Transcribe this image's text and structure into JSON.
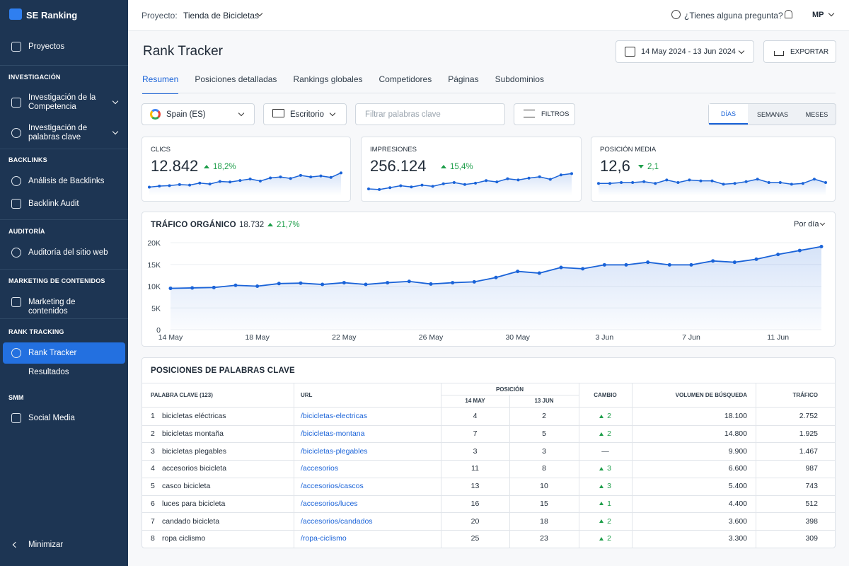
{
  "sidebar": {
    "brand": "SE Ranking",
    "top_item": "Proyectos",
    "sections": [
      {
        "title": "INVESTIGACIÓN",
        "items": [
          "Investigación de la Competencia",
          "Investigación de palabras clave"
        ]
      },
      {
        "title": "BACKLINKS",
        "items": [
          "Análisis de Backlinks",
          "Backlink Audit"
        ]
      },
      {
        "title": "AUDITORÍA",
        "items": [
          "Auditoría del sitio web"
        ]
      },
      {
        "title": "MARKETING DE CONTENIDOS",
        "items": [
          "Marketing de contenidos"
        ]
      },
      {
        "title": "RANK TRACKING",
        "items": [
          "Rank Tracker",
          "Resultados"
        ]
      },
      {
        "title": "SMM",
        "items": [
          "Social Media"
        ]
      }
    ],
    "minimize": "Minimizar"
  },
  "topbar": {
    "project_label": "Proyecto:",
    "project": "Tienda de Bicicletas",
    "help": "¿Tienes alguna pregunta?",
    "avatar": "MP"
  },
  "header": {
    "title": "Rank Tracker",
    "date_range": "14 May 2024 - 13 Jun 2024",
    "export": "EXPORTAR"
  },
  "tabs": [
    "Resumen",
    "Posiciones detalladas",
    "Rankings globales",
    "Competidores",
    "Páginas",
    "Subdominios"
  ],
  "filters": {
    "location": "Spain (ES)",
    "device": "Escritorio",
    "search_placeholder": "Filtrar palabras clave",
    "filters_button": "FILTROS",
    "periods": [
      "DÍAS",
      "SEMANAS",
      "MESES"
    ]
  },
  "kpis": [
    {
      "label": "CLICS",
      "value": "12.842",
      "change": "18,2%",
      "trend": "up",
      "sparkline": {
        "values": [
          330,
          340,
          345,
          355,
          350,
          370,
          360,
          385,
          380,
          395,
          410,
          390,
          420,
          430,
          415,
          445,
          430,
          440,
          425,
          470
        ],
        "ylim": [
          250,
          500
        ]
      }
    },
    {
      "label": "IMPRESIONES",
      "value": "256.124",
      "change": "15,4%",
      "trend": "up",
      "sparkline": {
        "values": [
          8000,
          7900,
          8200,
          8500,
          8300,
          8600,
          8400,
          8800,
          9000,
          8700,
          8900,
          9300,
          9100,
          9600,
          9400,
          9700,
          9900,
          9500,
          10200,
          10400
        ],
        "ylim": [
          7000,
          11000
        ]
      }
    },
    {
      "label": "POSICIÓN MEDIA",
      "value": "12,6",
      "change": "2,1",
      "trend": "down",
      "sparkline": {
        "values": [
          12.4,
          12.4,
          12.5,
          12.5,
          12.6,
          12.4,
          12.8,
          12.5,
          12.8,
          12.7,
          12.7,
          12.3,
          12.4,
          12.6,
          12.9,
          12.5,
          12.5,
          12.3,
          12.4,
          12.9,
          12.5
        ],
        "ylim": [
          11,
          14
        ]
      }
    }
  ],
  "traffic": {
    "title": "TRÁFICO ORGÁNICO",
    "total": "18.732",
    "change": "21,7%",
    "period": "Por día",
    "chart_data": {
      "type": "line",
      "color": "#1a63d8",
      "categories": [
        "14 May",
        null,
        null,
        null,
        "18 May",
        null,
        null,
        null,
        "22 May",
        null,
        null,
        null,
        "26 May",
        null,
        null,
        null,
        "30 May",
        null,
        null,
        null,
        "3 Jun",
        null,
        null,
        null,
        "7 Jun",
        null,
        null,
        null,
        "11 Jun",
        null,
        null
      ],
      "values": [
        9500,
        9600,
        9700,
        10200,
        10000,
        10600,
        10700,
        10400,
        10800,
        10400,
        10800,
        11100,
        10500,
        10800,
        11000,
        12000,
        13400,
        13000,
        14300,
        14000,
        14900,
        14900,
        15500,
        14900,
        14900,
        15800,
        15500,
        16200,
        17300,
        18200,
        19100
      ],
      "ylim": [
        0,
        20000
      ],
      "yticks": [
        0,
        {
          "value": 5000,
          "label": "5K"
        },
        {
          "value": 10000,
          "label": "10K"
        },
        {
          "value": 15000,
          "label": "15K"
        },
        {
          "value": 20000,
          "label": "20K"
        }
      ],
      "grid": true
    }
  },
  "table": {
    "title": "POSICIONES DE PALABRAS CLAVE",
    "headers": {
      "keyword": "PALABRA CLAVE (123)",
      "url": "URL",
      "position": "POSICIÓN",
      "date1": "14 MAY",
      "date2": "13 JUN",
      "change": "CAMBIO",
      "volume": "VOLUMEN DE BÚSQUEDA",
      "traffic": "TRÁFICO"
    },
    "rows": [
      [
        1,
        "bicicletas eléctricas",
        "/bicicletas-electricas",
        4,
        2,
        "2",
        "18.100",
        "2.752"
      ],
      [
        2,
        "bicicletas montaña",
        "/bicicletas-montana",
        7,
        5,
        "2",
        "14.800",
        "1.925"
      ],
      [
        3,
        "bicicletas plegables",
        "/bicicletas-plegables",
        3,
        3,
        "—",
        "9.900",
        "1.467"
      ],
      [
        4,
        "accesorios bicicleta",
        "/accesorios",
        11,
        8,
        "3",
        "6.600",
        "987"
      ],
      [
        5,
        "casco bicicleta",
        "/accesorios/cascos",
        13,
        10,
        "3",
        "5.400",
        "743"
      ],
      [
        6,
        "luces para bicicleta",
        "/accesorios/luces",
        16,
        15,
        "1",
        "4.400",
        "512"
      ],
      [
        7,
        "candado bicicleta",
        "/accesorios/candados",
        20,
        18,
        "2",
        "3.600",
        "398"
      ],
      [
        8,
        "ropa ciclismo",
        "/ropa-ciclismo",
        25,
        23,
        "2",
        "3.300",
        "309"
      ]
    ],
    "change_trend": [
      "up",
      "up",
      "none",
      "up",
      "up",
      "up",
      "up",
      "up"
    ]
  }
}
